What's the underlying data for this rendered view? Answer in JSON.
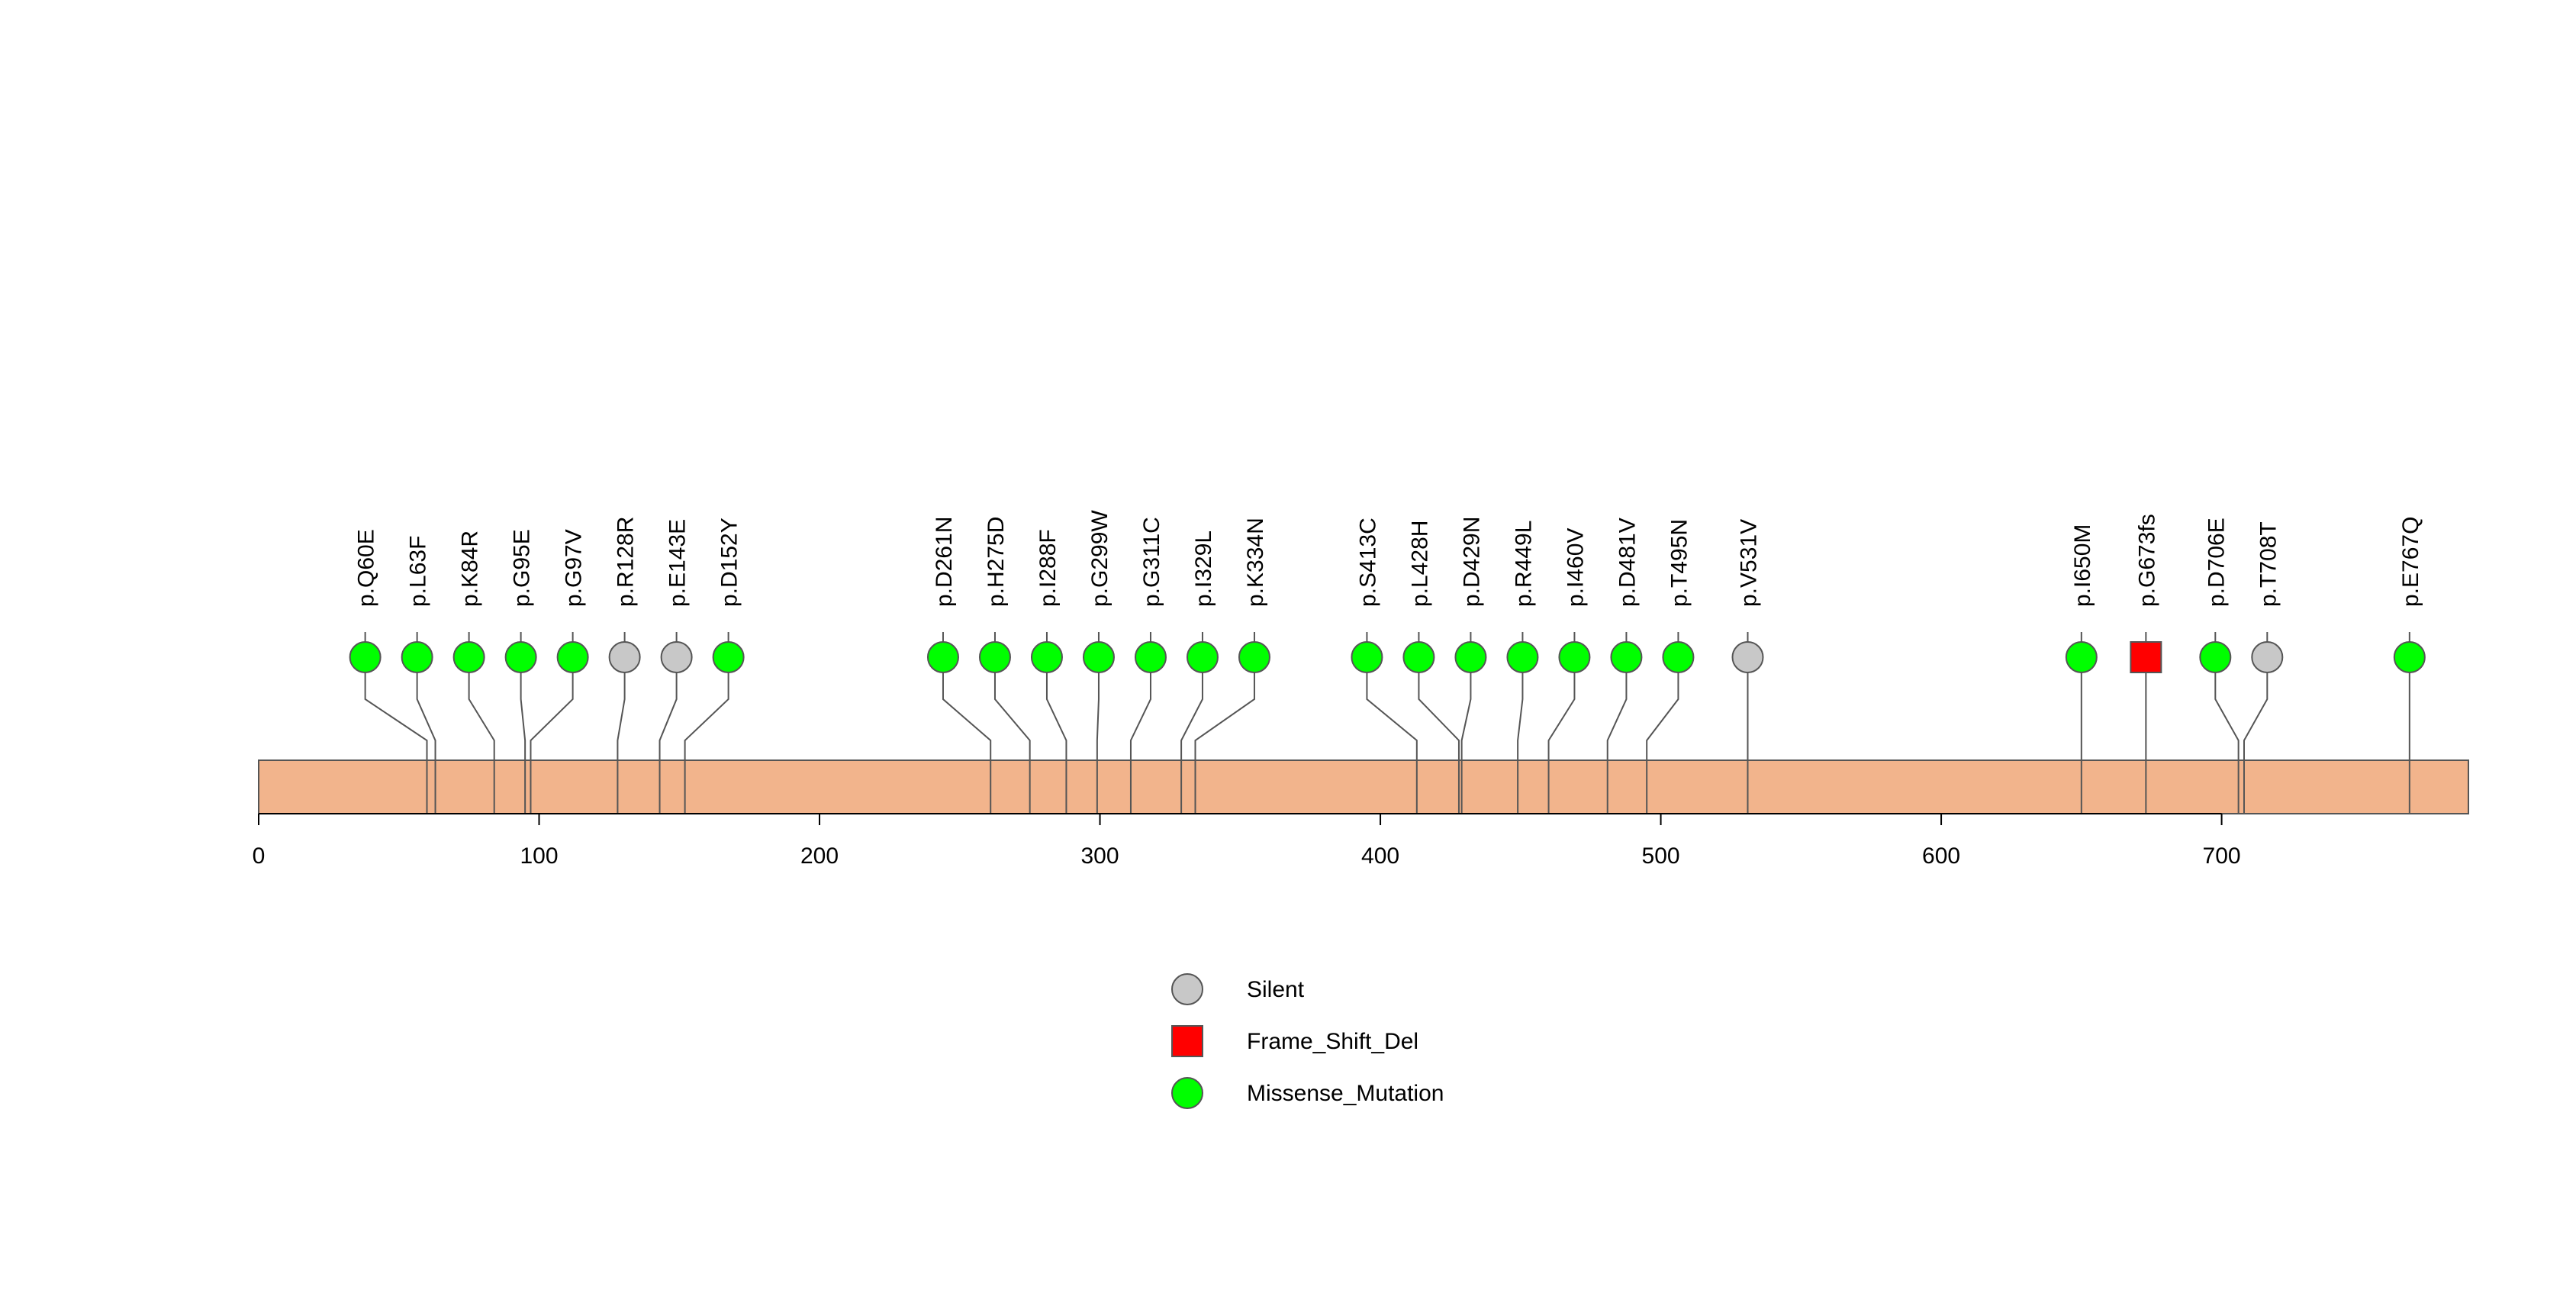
{
  "chart_data": {
    "type": "lollipop",
    "title": "",
    "xlabel": "",
    "ylabel": "",
    "xlim": [
      0,
      788
    ],
    "x_ticks": [
      0,
      100,
      200,
      300,
      400,
      500,
      600,
      700
    ],
    "protein_length": 788,
    "protein_color": "#F2B48C",
    "mutations": [
      {
        "label": "p.Q60E",
        "position": 60,
        "type": "Missense_Mutation"
      },
      {
        "label": "p.L63F",
        "position": 63,
        "type": "Missense_Mutation"
      },
      {
        "label": "p.K84R",
        "position": 84,
        "type": "Missense_Mutation"
      },
      {
        "label": "p.G95E",
        "position": 95,
        "type": "Missense_Mutation"
      },
      {
        "label": "p.G97V",
        "position": 97,
        "type": "Missense_Mutation"
      },
      {
        "label": "p.R128R",
        "position": 128,
        "type": "Silent"
      },
      {
        "label": "p.E143E",
        "position": 143,
        "type": "Silent"
      },
      {
        "label": "p.D152Y",
        "position": 152,
        "type": "Missense_Mutation"
      },
      {
        "label": "p.D261N",
        "position": 261,
        "type": "Missense_Mutation"
      },
      {
        "label": "p.H275D",
        "position": 275,
        "type": "Missense_Mutation"
      },
      {
        "label": "p.I288F",
        "position": 288,
        "type": "Missense_Mutation"
      },
      {
        "label": "p.G299W",
        "position": 299,
        "type": "Missense_Mutation"
      },
      {
        "label": "p.G311C",
        "position": 311,
        "type": "Missense_Mutation"
      },
      {
        "label": "p.I329L",
        "position": 329,
        "type": "Missense_Mutation"
      },
      {
        "label": "p.K334N",
        "position": 334,
        "type": "Missense_Mutation"
      },
      {
        "label": "p.S413C",
        "position": 413,
        "type": "Missense_Mutation"
      },
      {
        "label": "p.L428H",
        "position": 428,
        "type": "Missense_Mutation"
      },
      {
        "label": "p.D429N",
        "position": 429,
        "type": "Missense_Mutation"
      },
      {
        "label": "p.R449L",
        "position": 449,
        "type": "Missense_Mutation"
      },
      {
        "label": "p.I460V",
        "position": 460,
        "type": "Missense_Mutation"
      },
      {
        "label": "p.D481V",
        "position": 481,
        "type": "Missense_Mutation"
      },
      {
        "label": "p.T495N",
        "position": 495,
        "type": "Missense_Mutation"
      },
      {
        "label": "p.V531V",
        "position": 531,
        "type": "Silent"
      },
      {
        "label": "p.I650M",
        "position": 650,
        "type": "Missense_Mutation"
      },
      {
        "label": "p.G673fs",
        "position": 673,
        "type": "Frame_Shift_Del"
      },
      {
        "label": "p.D706E",
        "position": 706,
        "type": "Missense_Mutation"
      },
      {
        "label": "p.T708T",
        "position": 708,
        "type": "Silent"
      },
      {
        "label": "p.E767Q",
        "position": 767,
        "type": "Missense_Mutation"
      }
    ],
    "legend": [
      {
        "label": "Silent",
        "shape": "circle",
        "color": "#C8C8C8"
      },
      {
        "label": "Frame_Shift_Del",
        "shape": "square",
        "color": "#FF0000"
      },
      {
        "label": "Missense_Mutation",
        "shape": "circle",
        "color": "#00FF00"
      }
    ],
    "legend_position": "bottom-center"
  }
}
